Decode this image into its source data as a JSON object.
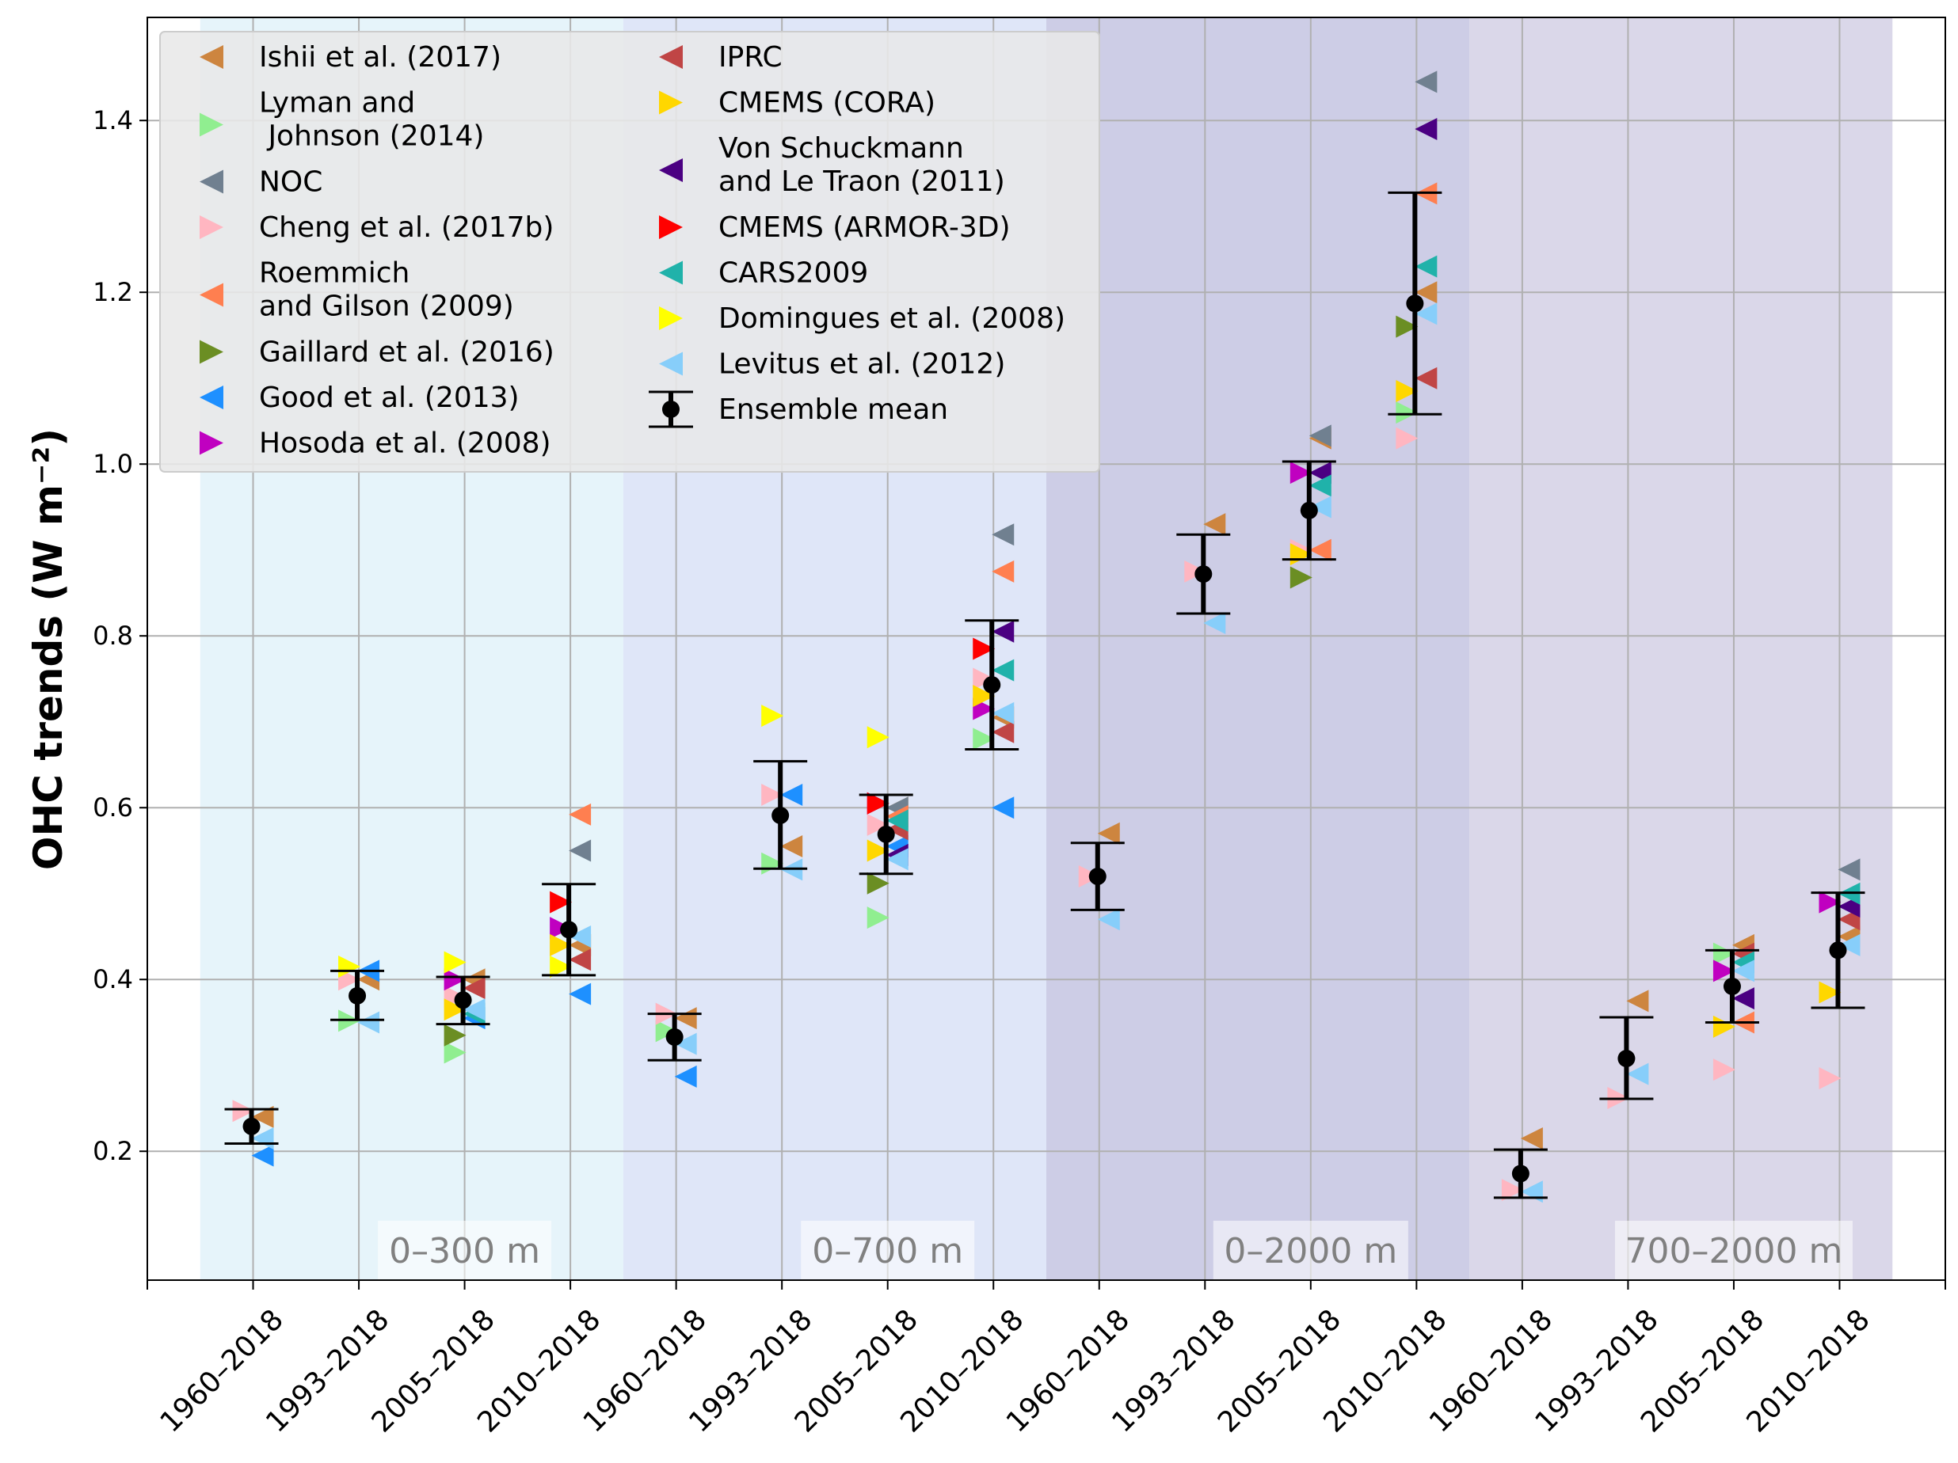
{
  "chart_data": {
    "type": "scatter",
    "ylabel": "OHC trends (W m⁻²)",
    "ylim": [
      0.05,
      1.52
    ],
    "yticks": [
      0.2,
      0.4,
      0.6,
      0.8,
      1.0,
      1.2,
      1.4
    ],
    "ytick_labels": [
      "0.2",
      "0.4",
      "0.6",
      "0.8",
      "1.0",
      "1.2",
      "1.4"
    ],
    "grid": true,
    "legend_position": "top-left",
    "categories": [
      "1960–2018",
      "1993–2018",
      "2005–2018",
      "2010–2018",
      "1960–2018",
      "1993–2018",
      "2005–2018",
      "2010–2018",
      "1960–2018",
      "1993–2018",
      "2005–2018",
      "2010–2018",
      "1960–2018",
      "1993–2018",
      "2005–2018",
      "2010–2018"
    ],
    "regions": [
      {
        "label": "0–300 m",
        "color": "#e6f4fa"
      },
      {
        "label": "0–700 m",
        "color": "#dfe6f8"
      },
      {
        "label": "0–2000 m",
        "color": "#cdcde6"
      },
      {
        "label": "700–2000 m",
        "color": "#dad7e9"
      }
    ],
    "series": [
      {
        "name": "Ishii et al. (2017)",
        "color": "#cd853f",
        "dir": "left",
        "values": [
          0.24,
          0.4,
          0.4,
          0.44,
          0.355,
          0.555,
          0.6,
          0.705,
          0.57,
          0.93,
          1.03,
          1.2,
          0.215,
          0.375,
          0.44,
          0.45
        ]
      },
      {
        "name": "Lyman and\n Johnson (2014)",
        "color": "#90ee90",
        "dir": "right",
        "values": [
          null,
          0.352,
          0.315,
          null,
          0.34,
          0.535,
          0.472,
          0.68,
          null,
          null,
          null,
          1.06,
          null,
          null,
          0.43,
          null
        ]
      },
      {
        "name": "NOC",
        "color": "#708090",
        "dir": "left",
        "values": [
          null,
          null,
          null,
          0.55,
          null,
          null,
          0.6,
          0.918,
          null,
          null,
          1.033,
          1.445,
          null,
          null,
          null,
          0.528
        ]
      },
      {
        "name": "Cheng et al. (2017b)",
        "color": "#ffb6c1",
        "dir": "right",
        "values": [
          0.247,
          0.4,
          0.38,
          0.44,
          0.36,
          0.615,
          0.58,
          0.75,
          0.52,
          0.875,
          0.9,
          1.03,
          0.155,
          0.262,
          0.295,
          0.285
        ]
      },
      {
        "name": "Roemmich\nand Gilson (2009)",
        "color": "#ff7f50",
        "dir": "left",
        "values": [
          null,
          null,
          null,
          0.592,
          null,
          null,
          0.59,
          0.875,
          null,
          null,
          0.9,
          1.315,
          null,
          null,
          0.35,
          null
        ]
      },
      {
        "name": "Gaillard et al. (2016)",
        "color": "#6b8e23",
        "dir": "right",
        "values": [
          null,
          null,
          0.335,
          null,
          null,
          null,
          0.512,
          null,
          null,
          null,
          0.868,
          1.16,
          null,
          null,
          null,
          null
        ]
      },
      {
        "name": "Good et al. (2013)",
        "color": "#1e90ff",
        "dir": "left",
        "values": [
          0.195,
          0.41,
          0.355,
          0.383,
          0.287,
          0.615,
          0.555,
          0.6,
          null,
          null,
          null,
          null,
          null,
          null,
          null,
          null
        ]
      },
      {
        "name": "Hosoda et al. (2008)",
        "color": "#c000c0",
        "dir": "right",
        "values": [
          null,
          null,
          0.4,
          0.46,
          null,
          null,
          0.605,
          0.715,
          null,
          null,
          0.99,
          null,
          null,
          null,
          0.41,
          0.49
        ]
      },
      {
        "name": "IPRC",
        "color": "#c04545",
        "dir": "left",
        "values": [
          null,
          null,
          0.39,
          0.423,
          null,
          null,
          0.575,
          0.688,
          null,
          null,
          null,
          1.1,
          null,
          null,
          0.43,
          0.47
        ]
      },
      {
        "name": "CMEMS (CORA)",
        "color": "#ffd700",
        "dir": "right",
        "values": [
          null,
          null,
          0.365,
          0.44,
          null,
          null,
          0.55,
          0.73,
          null,
          null,
          0.895,
          1.085,
          null,
          null,
          0.345,
          0.385
        ]
      },
      {
        "name": "Von Schuckmann\nand Le Traon (2011)",
        "color": "#4b0082",
        "dir": "left",
        "values": [
          null,
          null,
          null,
          null,
          null,
          null,
          0.545,
          0.805,
          null,
          null,
          0.99,
          1.39,
          null,
          null,
          0.378,
          0.485
        ]
      },
      {
        "name": "CMEMS (ARMOR-3D)",
        "color": "#ff0000",
        "dir": "right",
        "values": [
          null,
          null,
          null,
          0.49,
          null,
          null,
          0.605,
          0.785,
          null,
          null,
          null,
          null,
          null,
          null,
          null,
          null
        ]
      },
      {
        "name": "CARS2009",
        "color": "#20b2aa",
        "dir": "left",
        "values": [
          null,
          null,
          0.36,
          null,
          null,
          null,
          0.585,
          0.76,
          null,
          null,
          0.975,
          1.23,
          null,
          null,
          0.42,
          0.5
        ]
      },
      {
        "name": "Domingues et al. (2008)",
        "color": "#ffff00",
        "dir": "right",
        "values": [
          null,
          0.415,
          0.42,
          0.415,
          null,
          0.707,
          0.682,
          null,
          null,
          null,
          null,
          null,
          null,
          null,
          null,
          null
        ]
      },
      {
        "name": "Levitus et al. (2012)",
        "color": "#87cefa",
        "dir": "left",
        "values": [
          0.215,
          0.35,
          0.365,
          0.45,
          0.325,
          0.528,
          0.54,
          0.71,
          0.47,
          0.815,
          0.95,
          1.175,
          0.153,
          0.29,
          0.41,
          0.44
        ]
      }
    ],
    "ensemble_mean": {
      "name": "Ensemble mean",
      "values": [
        0.229,
        0.381,
        0.376,
        0.458,
        0.333,
        0.591,
        0.569,
        0.743,
        0.52,
        0.872,
        0.946,
        1.187,
        0.174,
        0.308,
        0.392,
        0.434
      ],
      "err_low": [
        0.209,
        0.353,
        0.348,
        0.405,
        0.306,
        0.529,
        0.523,
        0.668,
        0.481,
        0.826,
        0.889,
        1.058,
        0.146,
        0.261,
        0.35,
        0.367
      ],
      "err_high": [
        0.249,
        0.41,
        0.403,
        0.511,
        0.36,
        0.654,
        0.615,
        0.818,
        0.559,
        0.918,
        1.003,
        1.316,
        0.202,
        0.356,
        0.434,
        0.501
      ]
    }
  }
}
